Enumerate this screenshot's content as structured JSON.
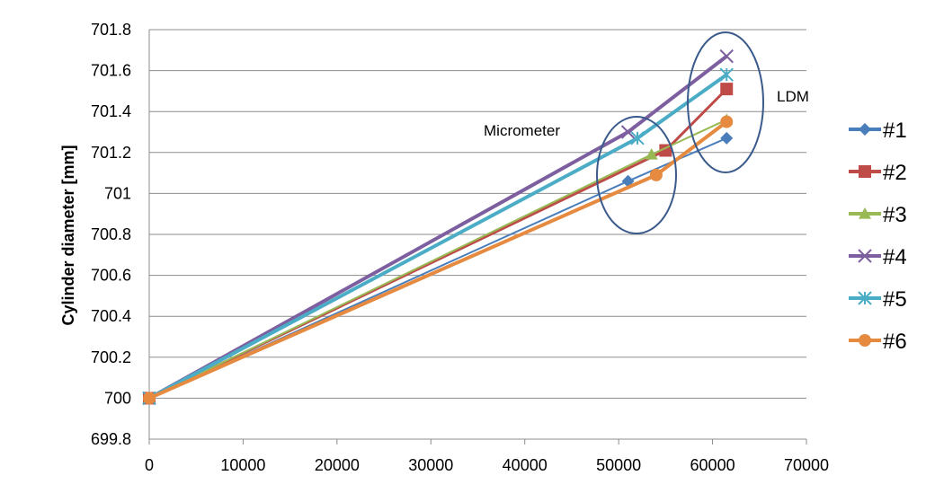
{
  "chart_data": {
    "type": "line",
    "ylabel": "Cylinder diameter [mm]",
    "xlabel": "",
    "xlim": [
      0,
      70000
    ],
    "ylim": [
      699.8,
      701.8
    ],
    "x_ticks": [
      "0",
      "10000",
      "20000",
      "30000",
      "40000",
      "50000",
      "60000",
      "70000"
    ],
    "y_ticks": [
      "699.8",
      "700",
      "700.2",
      "700.4",
      "700.6",
      "700.8",
      "701",
      "701.2",
      "701.4",
      "701.6",
      "701.8"
    ],
    "grid": "horizontal",
    "legend_position": "right",
    "annotations": [
      "Micrometer",
      "LDM"
    ],
    "series": [
      {
        "name": "#1",
        "color": "#4a7ebb",
        "marker": "diamond",
        "points": [
          [
            0,
            700.0
          ],
          [
            51000,
            701.06
          ],
          [
            61500,
            701.27
          ]
        ]
      },
      {
        "name": "#2",
        "color": "#be4b48",
        "marker": "square",
        "points": [
          [
            0,
            700.0
          ],
          [
            55000,
            701.21
          ],
          [
            61500,
            701.51
          ]
        ]
      },
      {
        "name": "#3",
        "color": "#98b954",
        "marker": "triangle",
        "points": [
          [
            0,
            700.0
          ],
          [
            53500,
            701.19
          ],
          [
            61500,
            701.36
          ]
        ]
      },
      {
        "name": "#4",
        "color": "#7d5fa0",
        "marker": "x",
        "points": [
          [
            0,
            700.0
          ],
          [
            51000,
            701.3
          ],
          [
            61500,
            701.67
          ]
        ]
      },
      {
        "name": "#5",
        "color": "#4bacc6",
        "marker": "star",
        "points": [
          [
            0,
            700.0
          ],
          [
            52000,
            701.27
          ],
          [
            61500,
            701.58
          ]
        ]
      },
      {
        "name": "#6",
        "color": "#e68a3f",
        "marker": "circle",
        "points": [
          [
            0,
            700.0
          ],
          [
            54000,
            701.09
          ],
          [
            61500,
            701.35
          ]
        ]
      }
    ]
  }
}
